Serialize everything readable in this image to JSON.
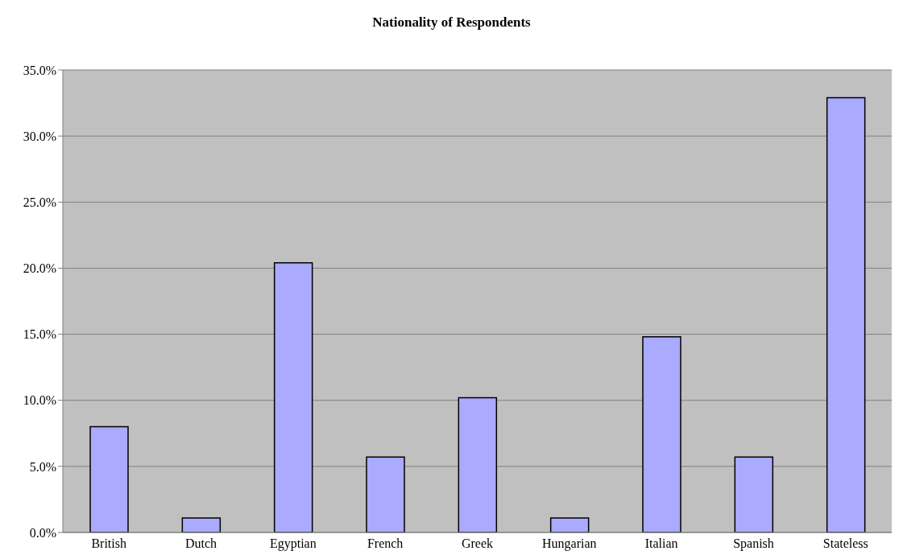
{
  "chart_data": {
    "type": "bar",
    "title": "Nationality of Respondents",
    "categories": [
      "British",
      "Dutch",
      "Egyptian",
      "French",
      "Greek",
      "Hungarian",
      "Italian",
      "Spanish",
      "Stateless"
    ],
    "values": [
      8.0,
      1.1,
      20.4,
      5.7,
      10.2,
      1.1,
      14.8,
      5.7,
      32.9
    ],
    "color": "#aaaaff",
    "ylim": [
      0,
      35
    ],
    "yticks": [
      {
        "value": 0,
        "label": "0.0%"
      },
      {
        "value": 5,
        "label": "5.0%"
      },
      {
        "value": 10,
        "label": "10.0%"
      },
      {
        "value": 15,
        "label": "15.0%"
      },
      {
        "value": 20,
        "label": "20.0%"
      },
      {
        "value": 25,
        "label": "25.0%"
      },
      {
        "value": 30,
        "label": "30.0%"
      },
      {
        "value": 35,
        "label": "35.0%"
      }
    ],
    "grid": "y"
  }
}
